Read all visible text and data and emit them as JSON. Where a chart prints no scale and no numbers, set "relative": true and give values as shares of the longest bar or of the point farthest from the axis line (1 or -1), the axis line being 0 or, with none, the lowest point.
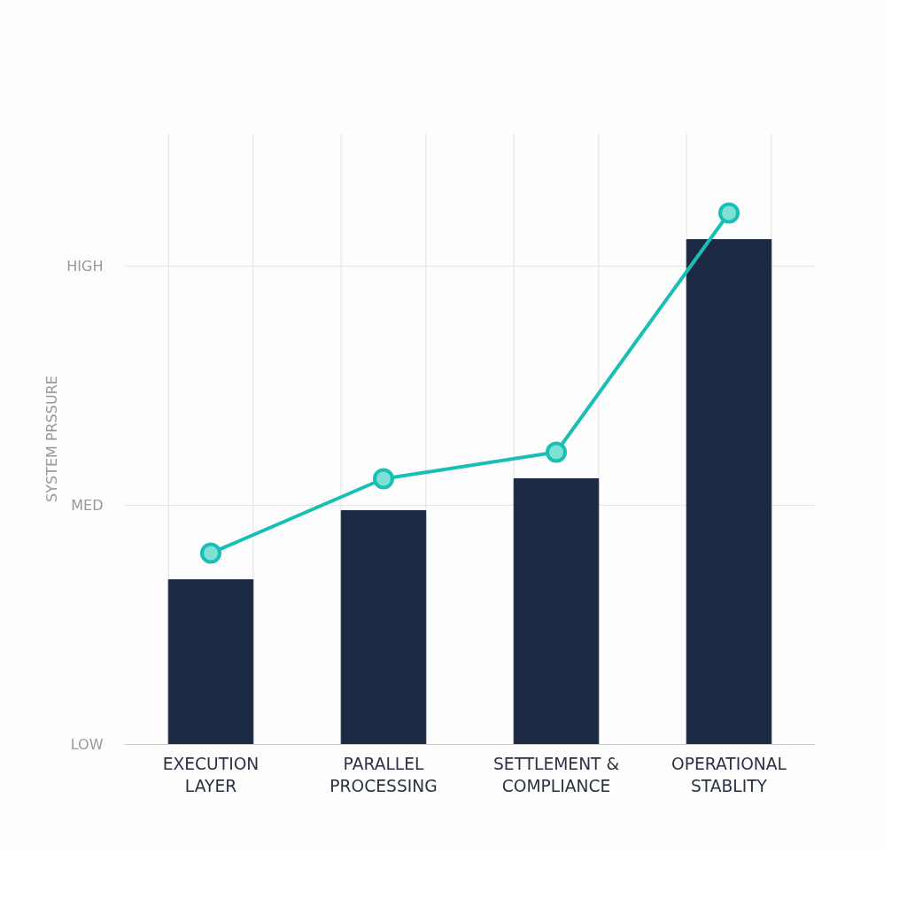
{
  "chart_data": {
    "type": "bar",
    "relative": true,
    "ylabel": "SYSTEM PRSSURE",
    "annotations": [
      "LOW",
      "MED",
      "HIGH"
    ],
    "categories": [
      "EXECUTION\nLAYER",
      "PARALLEL\nPROCESSING",
      "SETTLEMENT &\nCOMPLIANCE",
      "OPERATIONAL\nSTABLITY"
    ],
    "series": [
      {
        "color": "#1b2942",
        "values": [
          0.31,
          0.44,
          0.5,
          0.95
        ]
      },
      {
        "type": "line",
        "color": "#17bfb5",
        "values": [
          0.36,
          0.5,
          0.55,
          1.0
        ]
      }
    ],
    "marker": "circle",
    "grid": true
  }
}
